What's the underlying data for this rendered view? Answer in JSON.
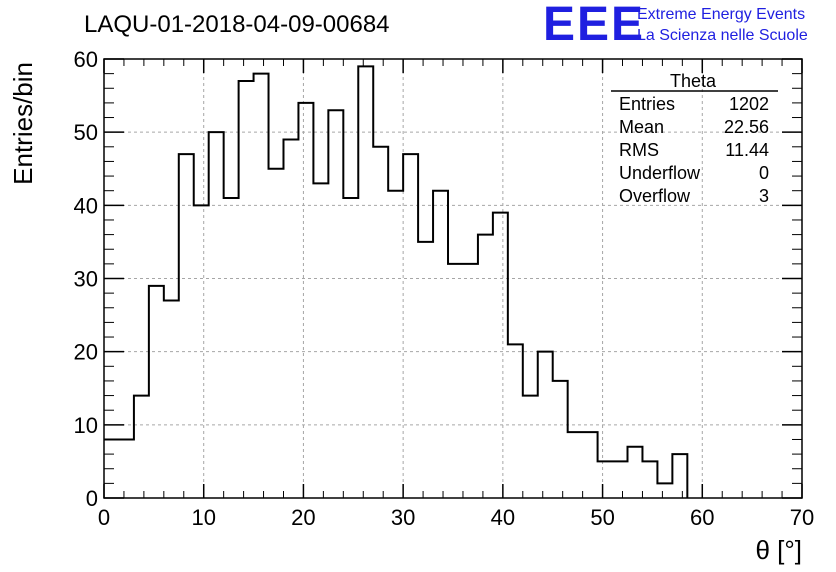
{
  "chart_data": {
    "type": "bar",
    "title": "LAQU-01-2018-04-09-00684",
    "xlabel": "θ [°]",
    "ylabel": "Entries/bin",
    "xlim": [
      0,
      70
    ],
    "ylim": [
      0,
      60
    ],
    "x_ticks": [
      "0",
      "10",
      "20",
      "30",
      "40",
      "50",
      "60",
      "70"
    ],
    "y_ticks": [
      "0",
      "10",
      "20",
      "30",
      "40",
      "50",
      "60"
    ],
    "grid": true,
    "bin_width": 1.5,
    "bin_start": 0,
    "values": [
      8,
      8,
      14,
      29,
      27,
      47,
      40,
      50,
      41,
      57,
      58,
      45,
      49,
      54,
      43,
      53,
      41,
      59,
      48,
      42,
      47,
      35,
      42,
      32,
      32,
      36,
      39,
      21,
      14,
      20,
      16,
      9,
      9,
      5,
      5,
      7,
      5,
      2,
      6,
      0,
      0,
      0,
      0,
      0,
      0,
      0
    ],
    "stats_box": {
      "title": "Theta",
      "rows": [
        {
          "label": "Entries",
          "value": "1202"
        },
        {
          "label": "Mean",
          "value": "22.56"
        },
        {
          "label": "RMS",
          "value": "11.44"
        },
        {
          "label": "Underflow",
          "value": "0"
        },
        {
          "label": "Overflow",
          "value": "3"
        }
      ]
    },
    "logo": {
      "mark": "EEE",
      "line1": "Extreme Energy Events",
      "line2": "La Scienza nelle Scuole",
      "color": "#1f1fe0"
    },
    "line_color": "#000000"
  }
}
